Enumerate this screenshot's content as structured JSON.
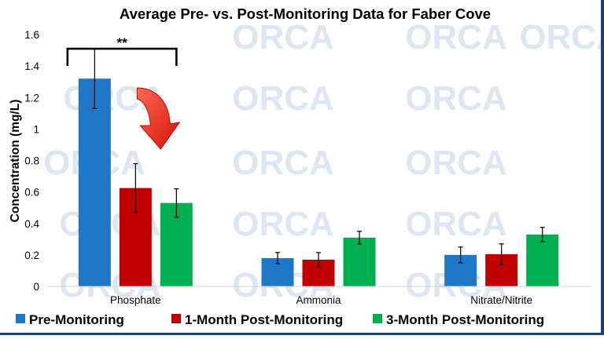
{
  "chart_data": {
    "type": "bar",
    "title": "Average Pre- vs. Post-Monitoring Data for Faber Cove",
    "ylabel": "Concentration (mg/L)",
    "xlabel": "",
    "ylim": [
      0,
      1.6
    ],
    "yticks": [
      0,
      0.2,
      0.4,
      0.6,
      0.8,
      1,
      1.2,
      1.4,
      1.6
    ],
    "ytick_labels": [
      "0",
      "0.2",
      "0.4",
      "0.6",
      "0.8",
      "1",
      "1.2",
      "1.4",
      "1.6"
    ],
    "grid": false,
    "legend_position": "bottom",
    "categories": [
      "Phosphate",
      "Ammonia",
      "Nitrate/Nitrite"
    ],
    "series": [
      {
        "name": "Pre-Monitoring",
        "color": "#1f77c8",
        "values": [
          1.32,
          0.18,
          0.2
        ],
        "errors": [
          0.19,
          0.035,
          0.05
        ]
      },
      {
        "name": "1-Month Post-Monitoring",
        "color": "#c00000",
        "values": [
          0.625,
          0.17,
          0.205
        ],
        "errors": [
          0.155,
          0.045,
          0.065
        ]
      },
      {
        "name": "3-Month Post-Monitoring",
        "color": "#00b050",
        "values": [
          0.53,
          0.31,
          0.33
        ],
        "errors": [
          0.09,
          0.04,
          0.045
        ]
      }
    ],
    "annotations": [
      {
        "type": "significance-bracket",
        "text": "**",
        "category": "Phosphate",
        "from_series": 0,
        "to_series": 2,
        "y": 1.51
      },
      {
        "type": "arrow",
        "category": "Phosphate",
        "direction": "down",
        "color": "#e8261c"
      }
    ]
  },
  "watermark": {
    "text": "ORCA",
    "color": "#dde6f2"
  }
}
